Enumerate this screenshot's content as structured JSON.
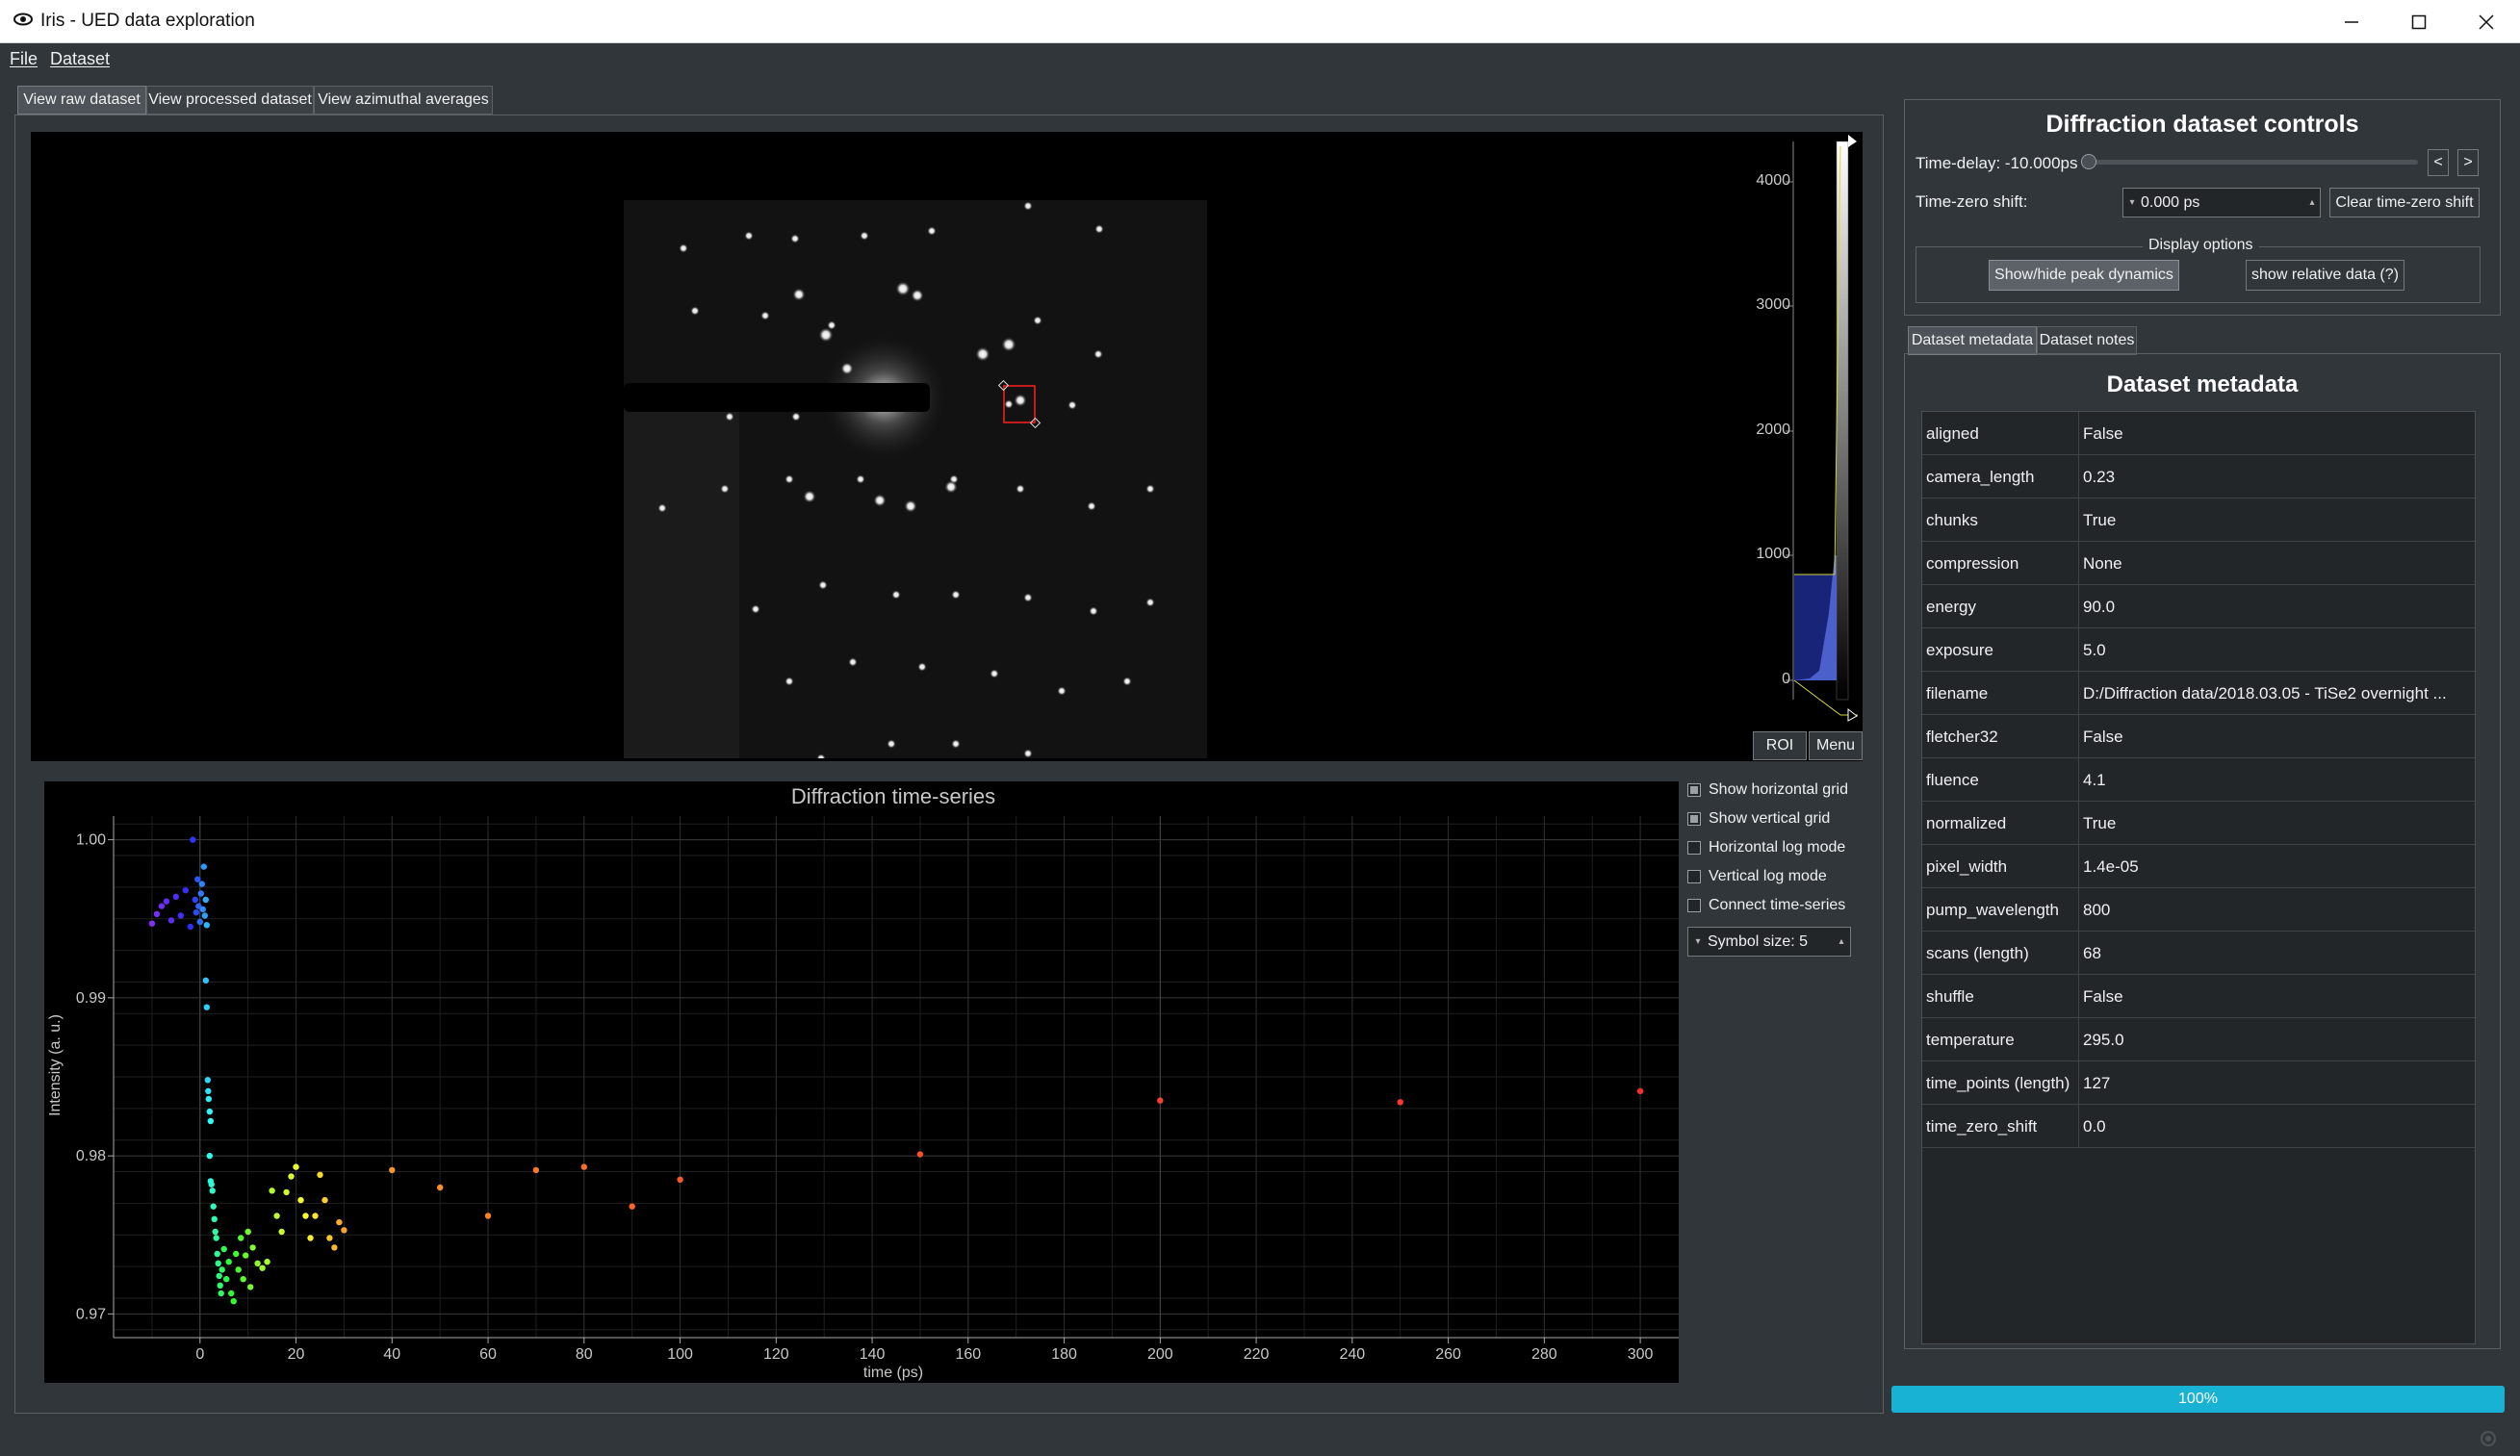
{
  "window": {
    "title": "Iris - UED data exploration",
    "app_icon": "eye-icon"
  },
  "menu": {
    "items": [
      "File",
      "Dataset"
    ]
  },
  "left_tabs": [
    "View raw dataset",
    "View processed dataset",
    "View azimuthal averages"
  ],
  "histogram": {
    "ticks": [
      "4000",
      "3000",
      "2000",
      "1000",
      "0"
    ],
    "roi_label": "ROI",
    "menu_label": "Menu"
  },
  "plot_options": {
    "checkboxes": [
      {
        "label": "Show horizontal grid",
        "checked": true
      },
      {
        "label": "Show vertical grid",
        "checked": true
      },
      {
        "label": "Horizontal log mode",
        "checked": false
      },
      {
        "label": "Vertical log mode",
        "checked": false
      },
      {
        "label": "Connect time-series",
        "checked": false
      }
    ],
    "symbol_size": "Symbol size: 5"
  },
  "controls": {
    "title": "Diffraction dataset controls",
    "time_delay_label": "Time-delay: -10.000ps",
    "prev_label": "<",
    "next_label": ">",
    "time_zero_label": "Time-zero shift:",
    "time_zero_value": "0.000 ps",
    "clear_label": "Clear time-zero shift",
    "display_options_label": "Display options",
    "peak_dynamics_label": "Show/hide peak dynamics",
    "relative_label": "show relative data (?)"
  },
  "right_tabs": [
    "Dataset metadata",
    "Dataset notes"
  ],
  "metadata": {
    "title": "Dataset metadata",
    "rows": [
      {
        "key": "aligned",
        "value": "False"
      },
      {
        "key": "camera_length",
        "value": "0.23"
      },
      {
        "key": "chunks",
        "value": "True"
      },
      {
        "key": "compression",
        "value": "None"
      },
      {
        "key": "energy",
        "value": "90.0"
      },
      {
        "key": "exposure",
        "value": "5.0"
      },
      {
        "key": "filename",
        "value": "D:/Diffraction data/2018.03.05 - TiSe2 overnight ..."
      },
      {
        "key": "fletcher32",
        "value": "False"
      },
      {
        "key": "fluence",
        "value": "4.1"
      },
      {
        "key": "normalized",
        "value": "True"
      },
      {
        "key": "pixel_width",
        "value": "1.4e-05"
      },
      {
        "key": "pump_wavelength",
        "value": "800"
      },
      {
        "key": "scans (length)",
        "value": "68"
      },
      {
        "key": "shuffle",
        "value": "False"
      },
      {
        "key": "temperature",
        "value": "295.0"
      },
      {
        "key": "time_points (length)",
        "value": "127"
      },
      {
        "key": "time_zero_shift",
        "value": "0.0"
      }
    ]
  },
  "progress": {
    "label": "100%",
    "value": 1.0
  },
  "chart_data": {
    "type": "scatter",
    "title": "Diffraction time-series",
    "xlabel": "time (ps)",
    "ylabel": "Intensity (a. u.)",
    "xlim": [
      -18,
      308
    ],
    "ylim": [
      0.9685,
      1.0015
    ],
    "xticks": [
      0,
      20,
      40,
      60,
      80,
      100,
      120,
      140,
      160,
      180,
      200,
      220,
      240,
      260,
      280,
      300
    ],
    "yticks": [
      0.97,
      0.98,
      0.99,
      1.0
    ],
    "ytick_labels": [
      "0.97",
      "0.98",
      "0.99",
      "1.00"
    ],
    "grid": true,
    "points": [
      [
        -10,
        0.9947
      ],
      [
        -9,
        0.9953
      ],
      [
        -8,
        0.9958
      ],
      [
        -7,
        0.9961
      ],
      [
        -6,
        0.9949
      ],
      [
        -5,
        0.9964
      ],
      [
        -4,
        0.9952
      ],
      [
        -3,
        0.9968
      ],
      [
        -2,
        0.9945
      ],
      [
        -1.5,
        1.0
      ],
      [
        -1,
        0.9962
      ],
      [
        -0.8,
        0.9954
      ],
      [
        -0.5,
        0.9975
      ],
      [
        -0.3,
        0.9958
      ],
      [
        0,
        0.9948
      ],
      [
        0.2,
        0.9966
      ],
      [
        0.4,
        0.9972
      ],
      [
        0.6,
        0.9956
      ],
      [
        0.8,
        0.9983
      ],
      [
        1,
        0.9952
      ],
      [
        1.2,
        0.9962
      ],
      [
        1.4,
        0.9946
      ],
      [
        1.2,
        0.9911
      ],
      [
        1.4,
        0.9894
      ],
      [
        1.6,
        0.9848
      ],
      [
        1.7,
        0.9841
      ],
      [
        1.8,
        0.9836
      ],
      [
        2,
        0.9828
      ],
      [
        2.2,
        0.9822
      ],
      [
        2,
        0.98
      ],
      [
        2.2,
        0.9784
      ],
      [
        2.4,
        0.9782
      ],
      [
        2.6,
        0.9778
      ],
      [
        2.8,
        0.9768
      ],
      [
        3,
        0.976
      ],
      [
        3.2,
        0.9752
      ],
      [
        3.4,
        0.9748
      ],
      [
        3.6,
        0.9738
      ],
      [
        3.8,
        0.9732
      ],
      [
        4,
        0.9724
      ],
      [
        4.2,
        0.9718
      ],
      [
        4.4,
        0.9713
      ],
      [
        4.6,
        0.9728
      ],
      [
        5,
        0.9741
      ],
      [
        5.5,
        0.9722
      ],
      [
        6,
        0.9733
      ],
      [
        6.5,
        0.9713
      ],
      [
        7,
        0.9708
      ],
      [
        7.5,
        0.9738
      ],
      [
        8,
        0.9728
      ],
      [
        8.5,
        0.9748
      ],
      [
        9,
        0.9722
      ],
      [
        9.5,
        0.9737
      ],
      [
        10,
        0.9752
      ],
      [
        10.5,
        0.9717
      ],
      [
        11,
        0.9742
      ],
      [
        12,
        0.9732
      ],
      [
        13,
        0.9729
      ],
      [
        14,
        0.9733
      ],
      [
        15,
        0.9778
      ],
      [
        16,
        0.9762
      ],
      [
        17,
        0.9752
      ],
      [
        18,
        0.9777
      ],
      [
        19,
        0.9787
      ],
      [
        20,
        0.9793
      ],
      [
        21,
        0.9772
      ],
      [
        22,
        0.9762
      ],
      [
        23,
        0.9748
      ],
      [
        24,
        0.9762
      ],
      [
        25,
        0.9788
      ],
      [
        26,
        0.9772
      ],
      [
        27,
        0.9748
      ],
      [
        28,
        0.9742
      ],
      [
        29,
        0.9758
      ],
      [
        30,
        0.9753
      ],
      [
        40,
        0.9791
      ],
      [
        50,
        0.978
      ],
      [
        60,
        0.9762
      ],
      [
        70,
        0.9791
      ],
      [
        80,
        0.9793
      ],
      [
        90,
        0.9768
      ],
      [
        100,
        0.9785
      ],
      [
        150,
        0.9801
      ],
      [
        200,
        0.9835
      ],
      [
        250,
        0.9834
      ],
      [
        300,
        0.9841
      ]
    ]
  }
}
